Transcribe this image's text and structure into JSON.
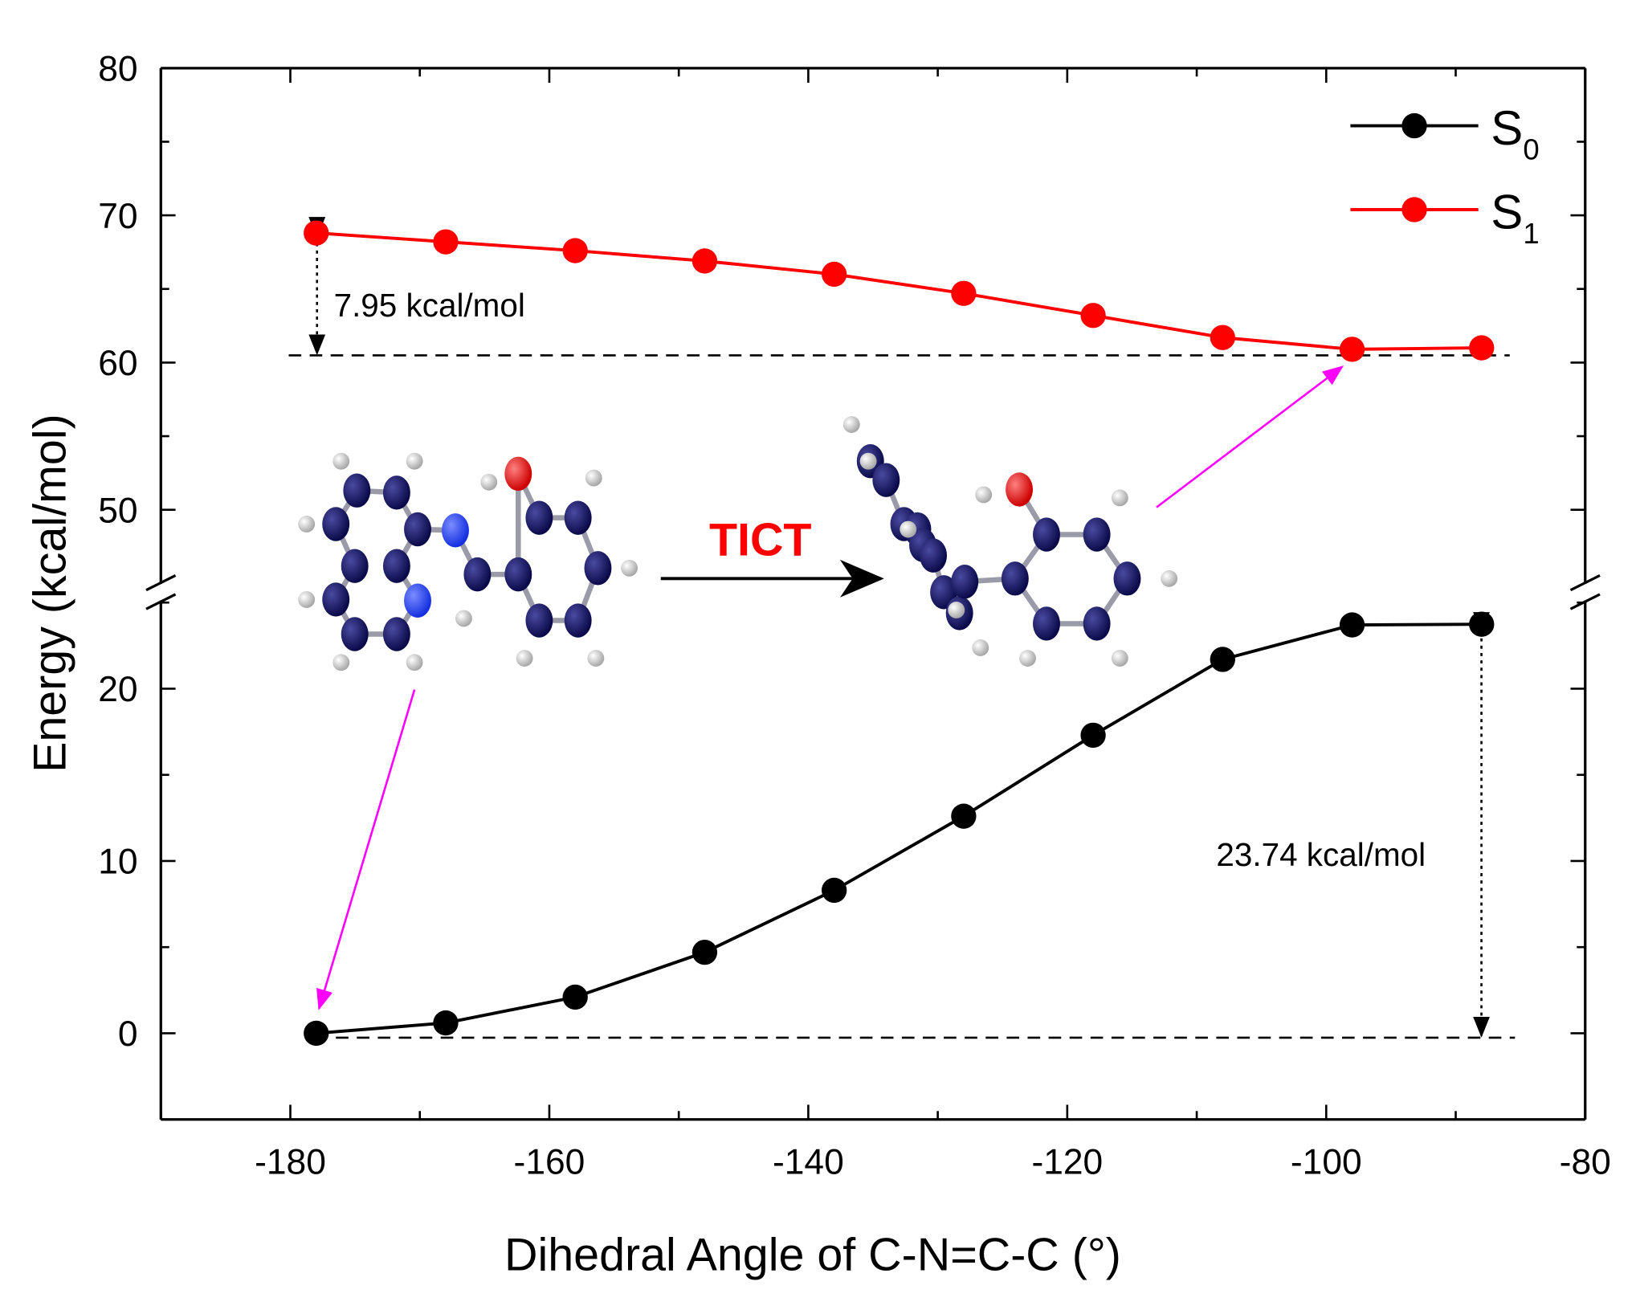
{
  "chart_data": {
    "type": "line",
    "title": "",
    "xlabel": "Dihedral Angle of C-N=C-C (°)",
    "ylabel": "Energy (kcal/mol)",
    "xlim": [
      -190,
      -80
    ],
    "ylim_lower": [
      -5,
      25.6
    ],
    "ylim_upper": [
      44.4,
      80
    ],
    "axis_break": true,
    "grid": false,
    "legend_position": "top-right",
    "x_ticks": [
      "-180",
      "-160",
      "-140",
      "-120",
      "-100",
      "-80"
    ],
    "x_tick_values": [
      -180,
      -160,
      -140,
      -120,
      -100,
      -80
    ],
    "y_ticks_lower": [
      "0",
      "10",
      "20"
    ],
    "y_tick_values_lower": [
      0,
      10,
      20
    ],
    "y_ticks_upper": [
      "50",
      "60",
      "70",
      "80"
    ],
    "y_tick_values_upper": [
      50,
      60,
      70,
      80
    ],
    "x": [
      -178,
      -168,
      -158,
      -148,
      -138,
      -128,
      -118,
      -108,
      -98,
      -88
    ],
    "series": [
      {
        "name": "S0",
        "label_main": "S",
        "label_sub": "0",
        "color": "#000000",
        "values": [
          0,
          0.6,
          2.1,
          4.7,
          8.3,
          12.6,
          17.3,
          21.7,
          23.7,
          23.74
        ]
      },
      {
        "name": "S1",
        "label_main": "S",
        "label_sub": "1",
        "color": "#ff0000",
        "values": [
          68.8,
          68.2,
          67.6,
          66.9,
          66.0,
          64.7,
          63.2,
          61.7,
          60.9,
          61.0
        ]
      }
    ],
    "annotations": {
      "s1_gap": "7.95 kcal/mol",
      "s0_gap": "23.74 kcal/mol",
      "process": "TICT",
      "process_color": "#ff0000",
      "arrow_color": "#ff00ff",
      "atom_c_color": "#0d0d5c",
      "atom_n_color": "#1f3fff",
      "atom_o_color": "#ee0000",
      "atom_h_color": "#e0e0e0"
    }
  }
}
